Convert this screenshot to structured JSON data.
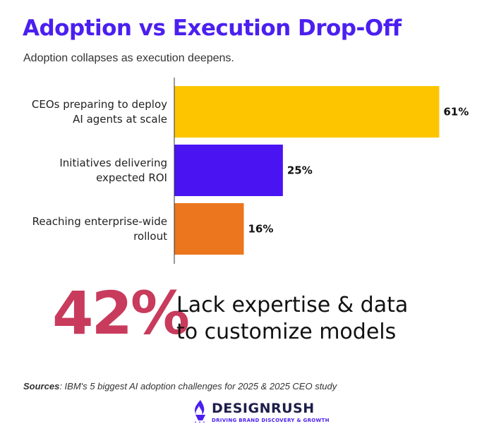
{
  "header": {
    "title": "Adoption vs Execution Drop-Off",
    "subtitle": "Adoption collapses as execution deepens."
  },
  "chart_data": {
    "type": "bar",
    "orientation": "horizontal",
    "categories": [
      [
        "CEOs preparing to deploy",
        "AI agents at scale"
      ],
      [
        "Initiatives delivering",
        "expected ROI"
      ],
      [
        "Reaching enterprise-wide",
        "rollout"
      ]
    ],
    "values": [
      61,
      25,
      16
    ],
    "value_labels": [
      "61%",
      "25%",
      "16%"
    ],
    "colors": [
      "#fdc500",
      "#4a14f2",
      "#ec761e"
    ],
    "xlim": [
      0,
      65
    ],
    "grid": false
  },
  "highlight": {
    "stat": "42%",
    "text_line1": "Lack expertise & data",
    "text_line2": "to customize models",
    "color": "#c83b5c"
  },
  "footer": {
    "sources_label": "Sources",
    "sources_text": ": IBM's 5 biggest AI adoption challenges for 2025 & 2025 CEO study",
    "brand_name": "DESIGNRUSH",
    "brand_tagline": "DRIVING BRAND DISCOVERY & GROWTH",
    "brand_icon": "flame-logo-icon"
  }
}
